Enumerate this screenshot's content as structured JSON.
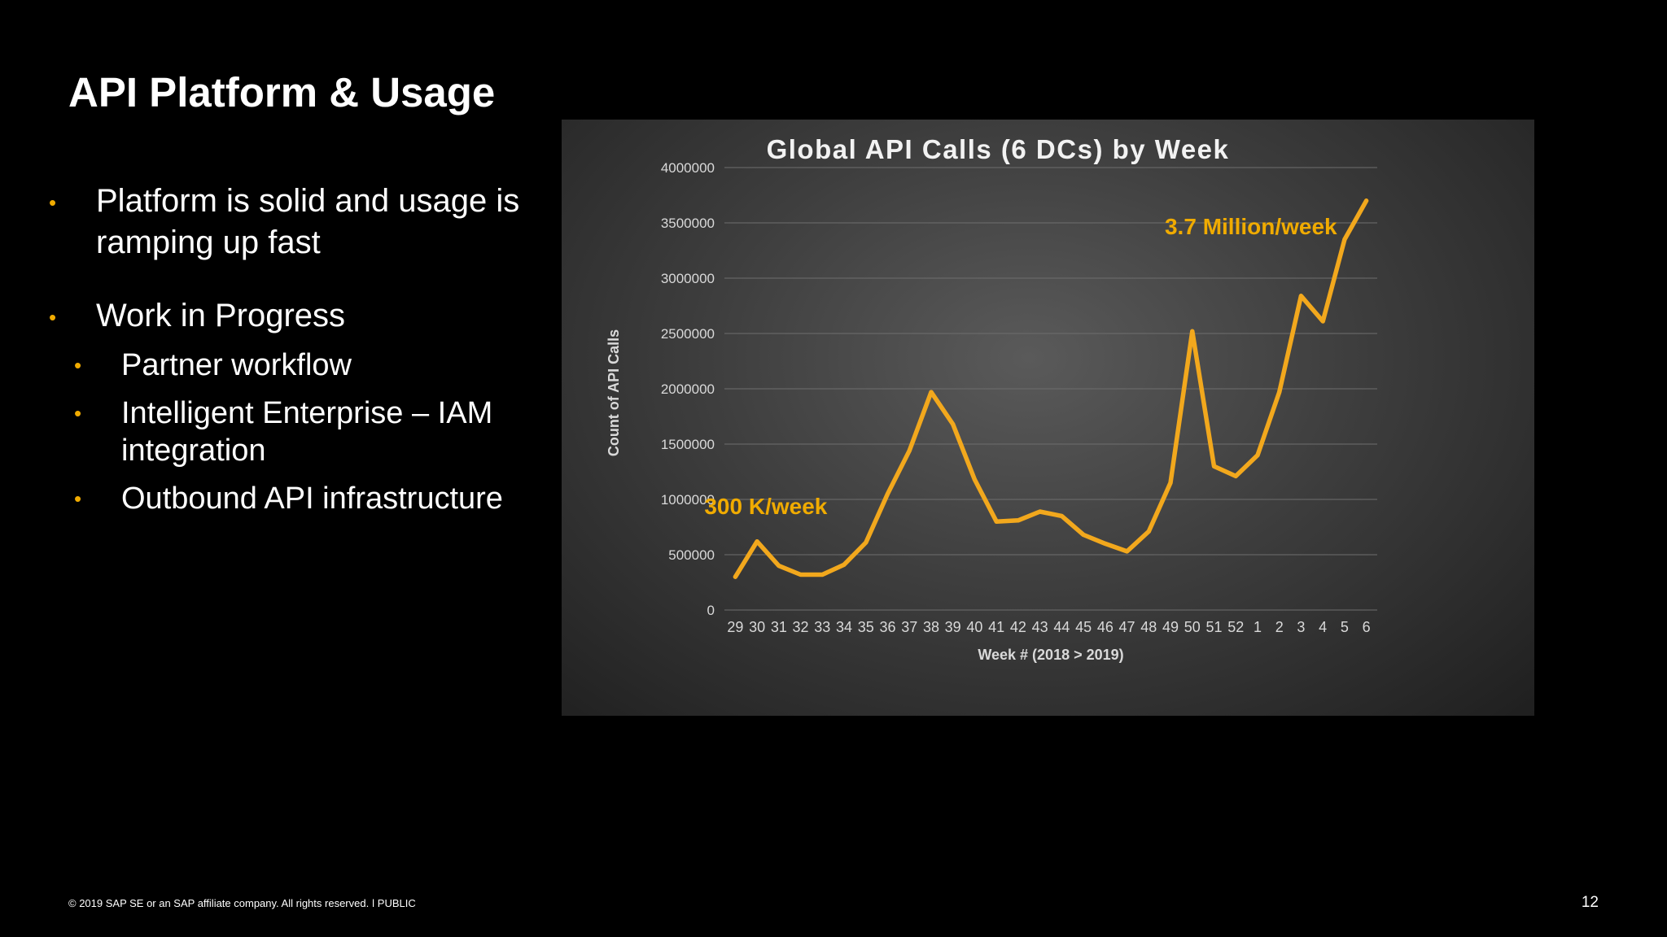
{
  "slide": {
    "title": "API Platform & Usage",
    "bullet_glyph": "•",
    "bullets": [
      "Platform is solid and usage is ramping up fast",
      "Work in Progress"
    ],
    "sub_bullets": [
      "Partner workflow",
      "Intelligent Enterprise – IAM integration",
      "Outbound API infrastructure"
    ],
    "footer": "© 2019 SAP SE or an SAP affiliate company. All rights reserved.  ǀ  PUBLIC",
    "page_number": "12"
  },
  "colors": {
    "accent": "#f0ab00",
    "line": "#f2a81d",
    "text": "#ffffff",
    "axis_text": "#d9d9d9",
    "grid": "#6e6e6e"
  },
  "chart_data": {
    "type": "line",
    "title": "Global API Calls (6 DCs) by Week",
    "xlabel": "Week # (2018 > 2019)",
    "ylabel": "Count of API Calls",
    "ylim": [
      0,
      4000000
    ],
    "yticks": [
      "0",
      "500000",
      "1000000",
      "1500000",
      "2000000",
      "2500000",
      "3000000",
      "3500000",
      "4000000"
    ],
    "grid": true,
    "categories": [
      "29",
      "30",
      "31",
      "32",
      "33",
      "34",
      "35",
      "36",
      "37",
      "38",
      "39",
      "40",
      "41",
      "42",
      "43",
      "44",
      "45",
      "46",
      "47",
      "48",
      "49",
      "50",
      "51",
      "52",
      "1",
      "2",
      "3",
      "4",
      "5",
      "6"
    ],
    "series": [
      {
        "name": "Global API Calls",
        "values": [
          300000,
          620000,
          400000,
          320000,
          320000,
          410000,
          610000,
          1050000,
          1440000,
          1970000,
          1680000,
          1180000,
          800000,
          810000,
          890000,
          850000,
          680000,
          600000,
          530000,
          710000,
          1150000,
          2520000,
          1300000,
          1210000,
          1400000,
          1970000,
          2840000,
          2610000,
          3350000,
          3700000
        ]
      }
    ],
    "annotations": [
      {
        "text": "300 K/week",
        "category": "29"
      },
      {
        "text": "3.7 Million/week",
        "category": "6"
      }
    ]
  }
}
